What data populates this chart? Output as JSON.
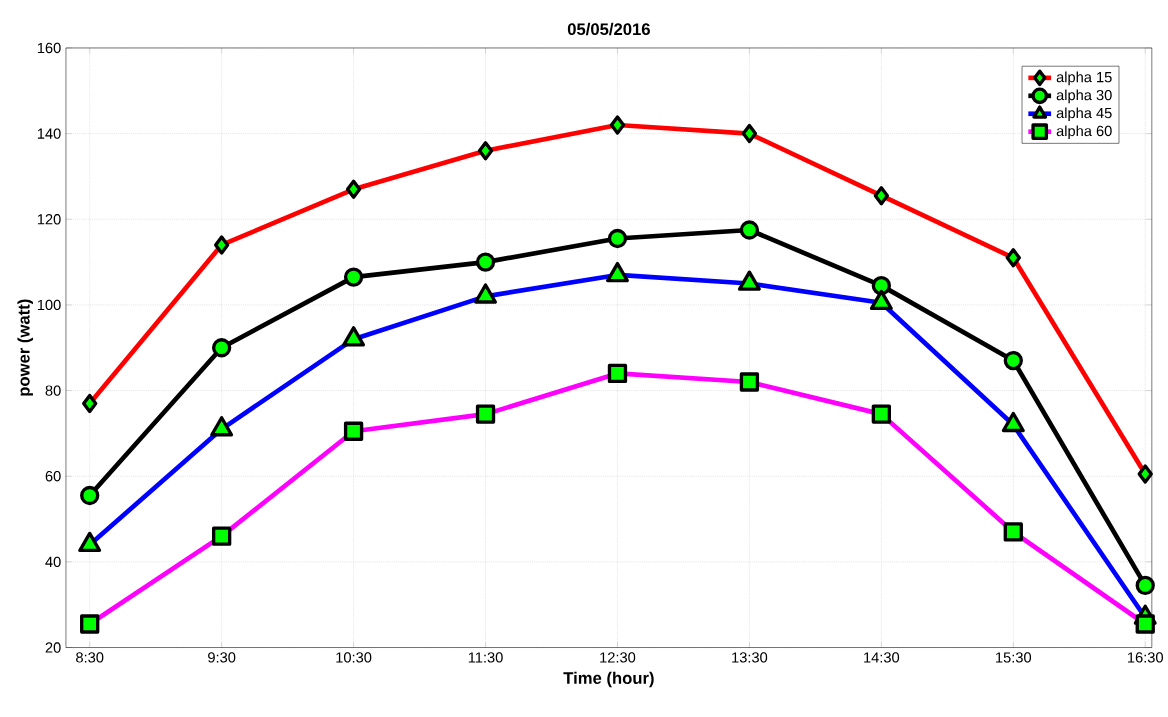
{
  "chart_data": {
    "type": "line",
    "title": "05/05/2016",
    "xlabel": "Time (hour)",
    "ylabel": "power (watt)",
    "categories": [
      "8:30",
      "9:30",
      "10:30",
      "11:30",
      "12:30",
      "13:30",
      "14:30",
      "15:30",
      "16:30"
    ],
    "series": [
      {
        "name": "alpha 15",
        "color": "#ff0000",
        "marker": "diamond",
        "values": [
          77,
          114,
          127,
          136,
          142,
          140,
          125.5,
          111,
          60.5
        ]
      },
      {
        "name": "alpha 30",
        "color": "#000000",
        "marker": "circle",
        "values": [
          55.5,
          90,
          106.5,
          110,
          115.5,
          117.5,
          104.5,
          87,
          34.5
        ]
      },
      {
        "name": "alpha 45",
        "color": "#0000ff",
        "marker": "triangle",
        "values": [
          44,
          71,
          92,
          102,
          107,
          105,
          100.5,
          72,
          27
        ]
      },
      {
        "name": "alpha 60",
        "color": "#ff00ff",
        "marker": "square",
        "values": [
          25.5,
          46,
          70.5,
          74.5,
          84,
          82,
          74.5,
          47,
          25.5
        ]
      }
    ],
    "ylim": [
      20,
      160
    ],
    "yticks": [
      20,
      40,
      60,
      80,
      100,
      120,
      140,
      160
    ],
    "grid": true,
    "legend": "top right",
    "line_style": "solid"
  }
}
